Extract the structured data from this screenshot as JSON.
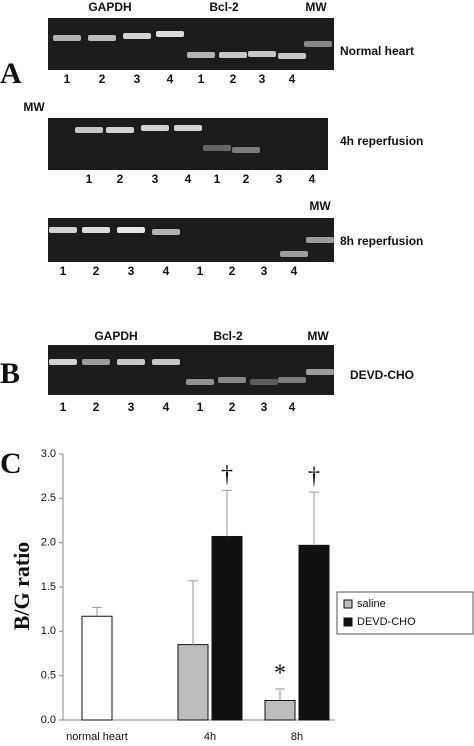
{
  "panels": {
    "A": "A",
    "B": "B",
    "C": "C"
  },
  "gels": [
    {
      "headers": [
        "GAPDH",
        "Bcl-2",
        "MW"
      ],
      "label": "Normal heart",
      "lanes": [
        "1",
        "2",
        "3",
        "4",
        "1",
        "2",
        "3",
        "4"
      ]
    },
    {
      "headers": [
        "MW"
      ],
      "label": "4h reperfusion",
      "lanes": [
        "1",
        "2",
        "3",
        "4",
        "1",
        "2",
        "3",
        "4"
      ]
    },
    {
      "headers": [
        "MW"
      ],
      "label": "8h reperfusion",
      "lanes": [
        "1",
        "2",
        "3",
        "4",
        "1",
        "2",
        "3",
        "4"
      ]
    },
    {
      "headers": [
        "GAPDH",
        "Bcl-2",
        "MW"
      ],
      "label": "DEVD-CHO",
      "lanes": [
        "1",
        "2",
        "3",
        "4",
        "1",
        "2",
        "3",
        "4"
      ]
    }
  ],
  "chart_data": {
    "type": "bar",
    "y_label": "B/G ratio",
    "categories": [
      "normal heart",
      "4h",
      "8h"
    ],
    "series": [
      {
        "color": "#ffffff",
        "values": [
          1.17,
          null,
          null
        ],
        "errors": [
          0.1,
          null,
          null
        ]
      },
      {
        "name": "saline",
        "color": "#bdbdbd",
        "values": [
          null,
          0.85,
          0.22
        ],
        "errors": [
          null,
          0.72,
          0.13
        ],
        "annotations": [
          null,
          null,
          "*"
        ]
      },
      {
        "name": "DEVD-CHO",
        "color": "#111111",
        "values": [
          null,
          2.07,
          1.97
        ],
        "errors": [
          null,
          0.52,
          0.6
        ],
        "annotations": [
          null,
          "†",
          "†"
        ]
      }
    ],
    "ylim": [
      0,
      3
    ],
    "yticks": [
      {
        "value": 0,
        "label": "0.0"
      },
      0.5,
      {
        "value": 1,
        "label": "1.0"
      },
      1.5,
      {
        "value": 2,
        "label": "2.0"
      },
      2.5,
      {
        "value": 3,
        "label": "3.0"
      }
    ],
    "legend": "right"
  }
}
